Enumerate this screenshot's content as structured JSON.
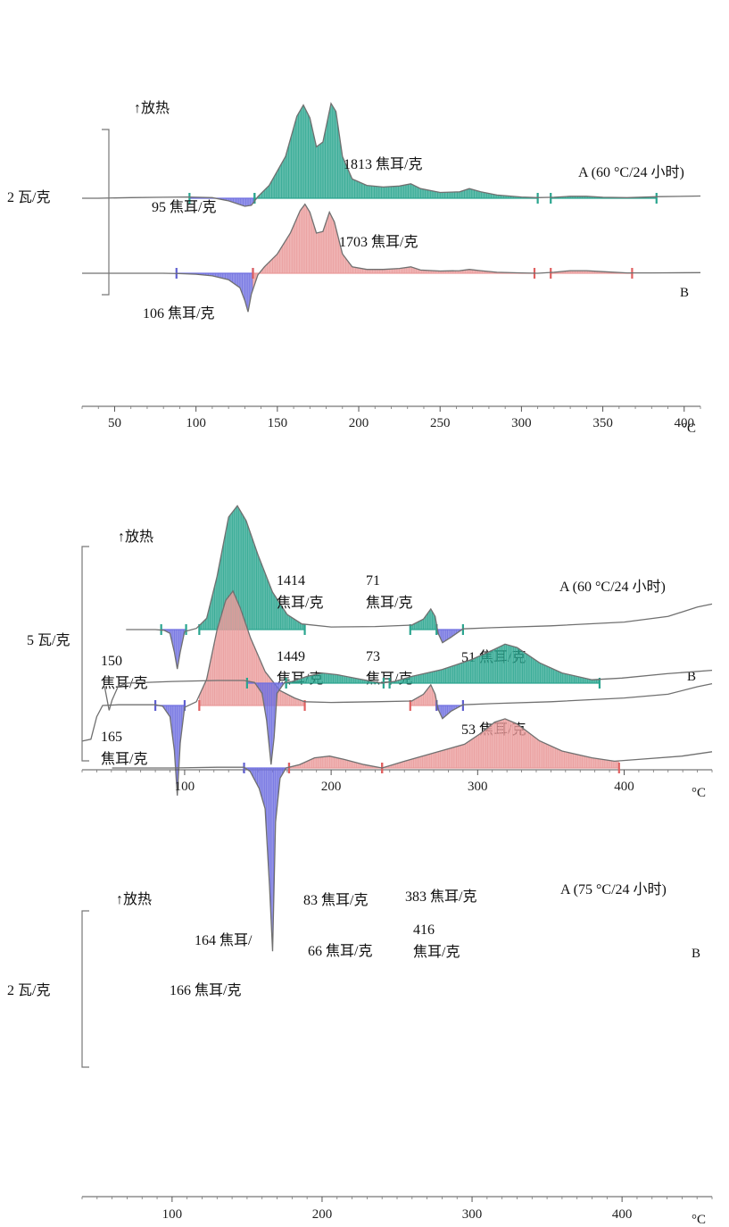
{
  "chart_data": [
    {
      "type": "line",
      "panel": "top",
      "title": "",
      "exo_label": "↑放热",
      "scale_label": "2 瓦/克",
      "xunit": "°C",
      "xlim": [
        30,
        410
      ],
      "xticks": [
        50,
        100,
        150,
        200,
        250,
        300,
        350,
        400
      ],
      "series": [
        {
          "name": "A (60 °C/24 小时)",
          "baseline": 0,
          "color": "#2aa58f",
          "points": [
            [
              30,
              0
            ],
            [
              40,
              0
            ],
            [
              60,
              0.02
            ],
            [
              80,
              0.03
            ],
            [
              95,
              0.04
            ],
            [
              110,
              0.02
            ],
            [
              120,
              -0.08
            ],
            [
              130,
              -0.25
            ],
            [
              134,
              -0.22
            ],
            [
              138,
              0.05
            ],
            [
              145,
              0.4
            ],
            [
              155,
              1.3
            ],
            [
              162,
              2.55
            ],
            [
              166,
              2.9
            ],
            [
              170,
              2.5
            ],
            [
              174,
              1.6
            ],
            [
              178,
              1.75
            ],
            [
              183,
              2.95
            ],
            [
              186,
              2.7
            ],
            [
              190,
              1.3
            ],
            [
              196,
              0.6
            ],
            [
              205,
              0.4
            ],
            [
              215,
              0.35
            ],
            [
              225,
              0.38
            ],
            [
              232,
              0.45
            ],
            [
              238,
              0.3
            ],
            [
              250,
              0.18
            ],
            [
              262,
              0.2
            ],
            [
              268,
              0.3
            ],
            [
              275,
              0.2
            ],
            [
              285,
              0.1
            ],
            [
              300,
              0.04
            ],
            [
              310,
              0.02
            ],
            [
              320,
              0.03
            ],
            [
              330,
              0.06
            ],
            [
              340,
              0.06
            ],
            [
              350,
              0.03
            ],
            [
              365,
              0.02
            ],
            [
              385,
              0.05
            ],
            [
              410,
              0.07
            ]
          ],
          "fills": [
            {
              "from": 96,
              "to": 136,
              "sign": "neg",
              "label": "95 焦耳/克"
            },
            {
              "from": 136,
              "to": 310,
              "sign": "pos",
              "label": "1813 焦耳/克"
            },
            {
              "from": 318,
              "to": 383,
              "sign": "pos",
              "label": ""
            }
          ]
        },
        {
          "name": "B",
          "baseline": 0,
          "color": "#e99a9a",
          "points": [
            [
              30,
              0
            ],
            [
              40,
              0
            ],
            [
              60,
              0
            ],
            [
              80,
              0
            ],
            [
              90,
              -0.01
            ],
            [
              100,
              -0.03
            ],
            [
              110,
              -0.08
            ],
            [
              120,
              -0.2
            ],
            [
              127,
              -0.45
            ],
            [
              130,
              -0.85
            ],
            [
              132,
              -1.2
            ],
            [
              134,
              -0.65
            ],
            [
              138,
              -0.05
            ],
            [
              142,
              0.2
            ],
            [
              150,
              0.6
            ],
            [
              158,
              1.25
            ],
            [
              164,
              1.95
            ],
            [
              167,
              2.15
            ],
            [
              170,
              1.9
            ],
            [
              174,
              1.25
            ],
            [
              178,
              1.3
            ],
            [
              182,
              1.9
            ],
            [
              185,
              1.6
            ],
            [
              190,
              0.6
            ],
            [
              196,
              0.2
            ],
            [
              205,
              0.12
            ],
            [
              215,
              0.12
            ],
            [
              225,
              0.15
            ],
            [
              232,
              0.2
            ],
            [
              238,
              0.1
            ],
            [
              250,
              0.07
            ],
            [
              262,
              0.08
            ],
            [
              268,
              0.12
            ],
            [
              275,
              0.08
            ],
            [
              285,
              0.03
            ],
            [
              300,
              0.01
            ],
            [
              310,
              0
            ],
            [
              320,
              0.03
            ],
            [
              330,
              0.08
            ],
            [
              340,
              0.08
            ],
            [
              350,
              0.05
            ],
            [
              365,
              0.01
            ],
            [
              380,
              0.01
            ],
            [
              410,
              0.02
            ]
          ],
          "fills": [
            {
              "from": 88,
              "to": 135,
              "sign": "neg",
              "label": "106 焦耳/克"
            },
            {
              "from": 135,
              "to": 308,
              "sign": "pos",
              "label": "1703 焦耳/克"
            },
            {
              "from": 318,
              "to": 368,
              "sign": "pos",
              "label": ""
            }
          ]
        }
      ]
    },
    {
      "type": "line",
      "panel": "middle",
      "title": "",
      "exo_label": "↑放热",
      "scale_label": "5 瓦/克",
      "xunit": "°C",
      "xlim": [
        30,
        460
      ],
      "xticks": [
        100,
        200,
        300,
        400
      ],
      "series": [
        {
          "name": "A (60 °C/24 小时)",
          "baseline": 0,
          "color": "#2aa58f",
          "points": [
            [
              60,
              0
            ],
            [
              80,
              0
            ],
            [
              86,
              -0.02
            ],
            [
              90,
              -0.1
            ],
            [
              93,
              -0.6
            ],
            [
              95,
              -1.05
            ],
            [
              97,
              -0.6
            ],
            [
              100,
              -0.05
            ],
            [
              108,
              0.03
            ],
            [
              115,
              0.3
            ],
            [
              122,
              1.4
            ],
            [
              130,
              3.0
            ],
            [
              136,
              3.3
            ],
            [
              142,
              2.9
            ],
            [
              150,
              2.0
            ],
            [
              160,
              1.0
            ],
            [
              170,
              0.4
            ],
            [
              180,
              0.15
            ],
            [
              200,
              0.07
            ],
            [
              230,
              0.08
            ],
            [
              255,
              0.12
            ],
            [
              263,
              0.28
            ],
            [
              268,
              0.55
            ],
            [
              271,
              0.35
            ],
            [
              273,
              -0.1
            ],
            [
              276,
              -0.35
            ],
            [
              282,
              -0.2
            ],
            [
              290,
              0.02
            ],
            [
              310,
              0.05
            ],
            [
              350,
              0.1
            ],
            [
              400,
              0.2
            ],
            [
              430,
              0.35
            ],
            [
              450,
              0.6
            ],
            [
              460,
              0.68
            ]
          ],
          "fills": [
            {
              "from": 84,
              "to": 101,
              "sign": "neg",
              "label": "150 焦耳/克"
            },
            {
              "from": 110,
              "to": 182,
              "sign": "pos",
              "label": "1414 焦耳/克"
            },
            {
              "from": 254,
              "to": 272,
              "sign": "pos",
              "label": "71 焦耳/克"
            },
            {
              "from": 272,
              "to": 290,
              "sign": "neg",
              "label": "51 焦耳/克"
            }
          ]
        },
        {
          "name": "B",
          "baseline": 0,
          "color": "#e99a9a",
          "points": [
            [
              30,
              -0.95
            ],
            [
              36,
              -0.9
            ],
            [
              40,
              -0.3
            ],
            [
              44,
              0.0
            ],
            [
              55,
              0.02
            ],
            [
              80,
              0.02
            ],
            [
              85,
              -0.02
            ],
            [
              90,
              -0.3
            ],
            [
              93,
              -1.2
            ],
            [
              95,
              -2.4
            ],
            [
              97,
              -1.0
            ],
            [
              100,
              -0.05
            ],
            [
              108,
              0.1
            ],
            [
              115,
              0.7
            ],
            [
              122,
              2.0
            ],
            [
              128,
              2.8
            ],
            [
              133,
              3.05
            ],
            [
              138,
              2.6
            ],
            [
              145,
              1.8
            ],
            [
              155,
              0.9
            ],
            [
              165,
              0.4
            ],
            [
              175,
              0.2
            ],
            [
              182,
              0.1
            ],
            [
              200,
              0.08
            ],
            [
              230,
              0.1
            ],
            [
              255,
              0.12
            ],
            [
              263,
              0.3
            ],
            [
              268,
              0.55
            ],
            [
              271,
              0.3
            ],
            [
              273,
              -0.1
            ],
            [
              276,
              -0.35
            ],
            [
              282,
              -0.15
            ],
            [
              290,
              0.02
            ],
            [
              310,
              0.05
            ],
            [
              350,
              0.1
            ],
            [
              400,
              0.2
            ],
            [
              430,
              0.3
            ],
            [
              450,
              0.5
            ],
            [
              460,
              0.58
            ]
          ],
          "fills": [
            {
              "from": 80,
              "to": 100,
              "sign": "neg",
              "label": "165 焦耳/克"
            },
            {
              "from": 110,
              "to": 182,
              "sign": "pos",
              "label": "1449 焦耳/克"
            },
            {
              "from": 254,
              "to": 272,
              "sign": "pos",
              "label": "73 焦耳/克"
            },
            {
              "from": 272,
              "to": 290,
              "sign": "neg",
              "label": "53 焦耳/克"
            }
          ]
        }
      ]
    },
    {
      "type": "line",
      "panel": "bottom",
      "title": "",
      "exo_label": "↑放热",
      "scale_label": "2 瓦/克",
      "xunit": "°C",
      "xlim": [
        40,
        460
      ],
      "xticks": [
        100,
        200,
        300,
        400
      ],
      "series": [
        {
          "name": "A (75 °C/24 小时)",
          "baseline": 0,
          "color": "#2aa58f",
          "points": [
            [
              55,
              -0.1
            ],
            [
              58,
              -0.8
            ],
            [
              60,
              -0.5
            ],
            [
              64,
              -0.1
            ],
            [
              70,
              0
            ],
            [
              100,
              0.05
            ],
            [
              130,
              0.08
            ],
            [
              148,
              0.08
            ],
            [
              155,
              0.02
            ],
            [
              160,
              -0.3
            ],
            [
              163,
              -1.1
            ],
            [
              166,
              -2.4
            ],
            [
              168,
              -1.6
            ],
            [
              170,
              -0.3
            ],
            [
              175,
              0.02
            ],
            [
              180,
              0.05
            ],
            [
              190,
              0.2
            ],
            [
              200,
              0.3
            ],
            [
              210,
              0.25
            ],
            [
              225,
              0.12
            ],
            [
              240,
              0.0
            ],
            [
              248,
              0.05
            ],
            [
              260,
              0.2
            ],
            [
              280,
              0.4
            ],
            [
              300,
              0.7
            ],
            [
              315,
              1.0
            ],
            [
              322,
              1.15
            ],
            [
              330,
              1.05
            ],
            [
              345,
              0.6
            ],
            [
              360,
              0.3
            ],
            [
              380,
              0.1
            ],
            [
              400,
              0.15
            ],
            [
              430,
              0.28
            ],
            [
              460,
              0.38
            ]
          ],
          "fills": [
            {
              "from": 150,
              "to": 176,
              "sign": "neg",
              "label": "164 焦耳/"
            },
            {
              "from": 176,
              "to": 241,
              "sign": "pos",
              "label": "83 焦耳/克"
            },
            {
              "from": 245,
              "to": 385,
              "sign": "pos",
              "label": "383 焦耳/克"
            }
          ]
        },
        {
          "name": "B",
          "baseline": 0,
          "color": "#e99a9a",
          "points": [
            [
              60,
              0
            ],
            [
              100,
              0
            ],
            [
              130,
              0.02
            ],
            [
              148,
              0.02
            ],
            [
              152,
              -0.1
            ],
            [
              158,
              -0.6
            ],
            [
              162,
              -1.2
            ],
            [
              165,
              -3.5
            ],
            [
              167,
              -5.4
            ],
            [
              169,
              -1.6
            ],
            [
              172,
              -0.3
            ],
            [
              176,
              0.0
            ],
            [
              185,
              0.1
            ],
            [
              195,
              0.3
            ],
            [
              205,
              0.35
            ],
            [
              215,
              0.25
            ],
            [
              228,
              0.1
            ],
            [
              240,
              0.0
            ],
            [
              255,
              0.2
            ],
            [
              275,
              0.45
            ],
            [
              295,
              0.7
            ],
            [
              305,
              1.0
            ],
            [
              315,
              1.35
            ],
            [
              322,
              1.45
            ],
            [
              330,
              1.3
            ],
            [
              345,
              0.8
            ],
            [
              360,
              0.5
            ],
            [
              380,
              0.3
            ],
            [
              395,
              0.2
            ],
            [
              410,
              0.25
            ],
            [
              440,
              0.35
            ],
            [
              460,
              0.48
            ]
          ],
          "fills": [
            {
              "from": 148,
              "to": 178,
              "sign": "neg",
              "label": "166 焦耳/克"
            },
            {
              "from": 178,
              "to": 240,
              "sign": "pos",
              "label": "66 焦耳/克"
            },
            {
              "from": 240,
              "to": 398,
              "sign": "pos",
              "label": "416 焦耳/克"
            }
          ]
        }
      ]
    }
  ],
  "colors": {
    "exo_fill": "#2aa58f",
    "exo_fill_b": "#e99a9a",
    "endo_fill": "#6f6fe0",
    "trace": "#707070"
  }
}
